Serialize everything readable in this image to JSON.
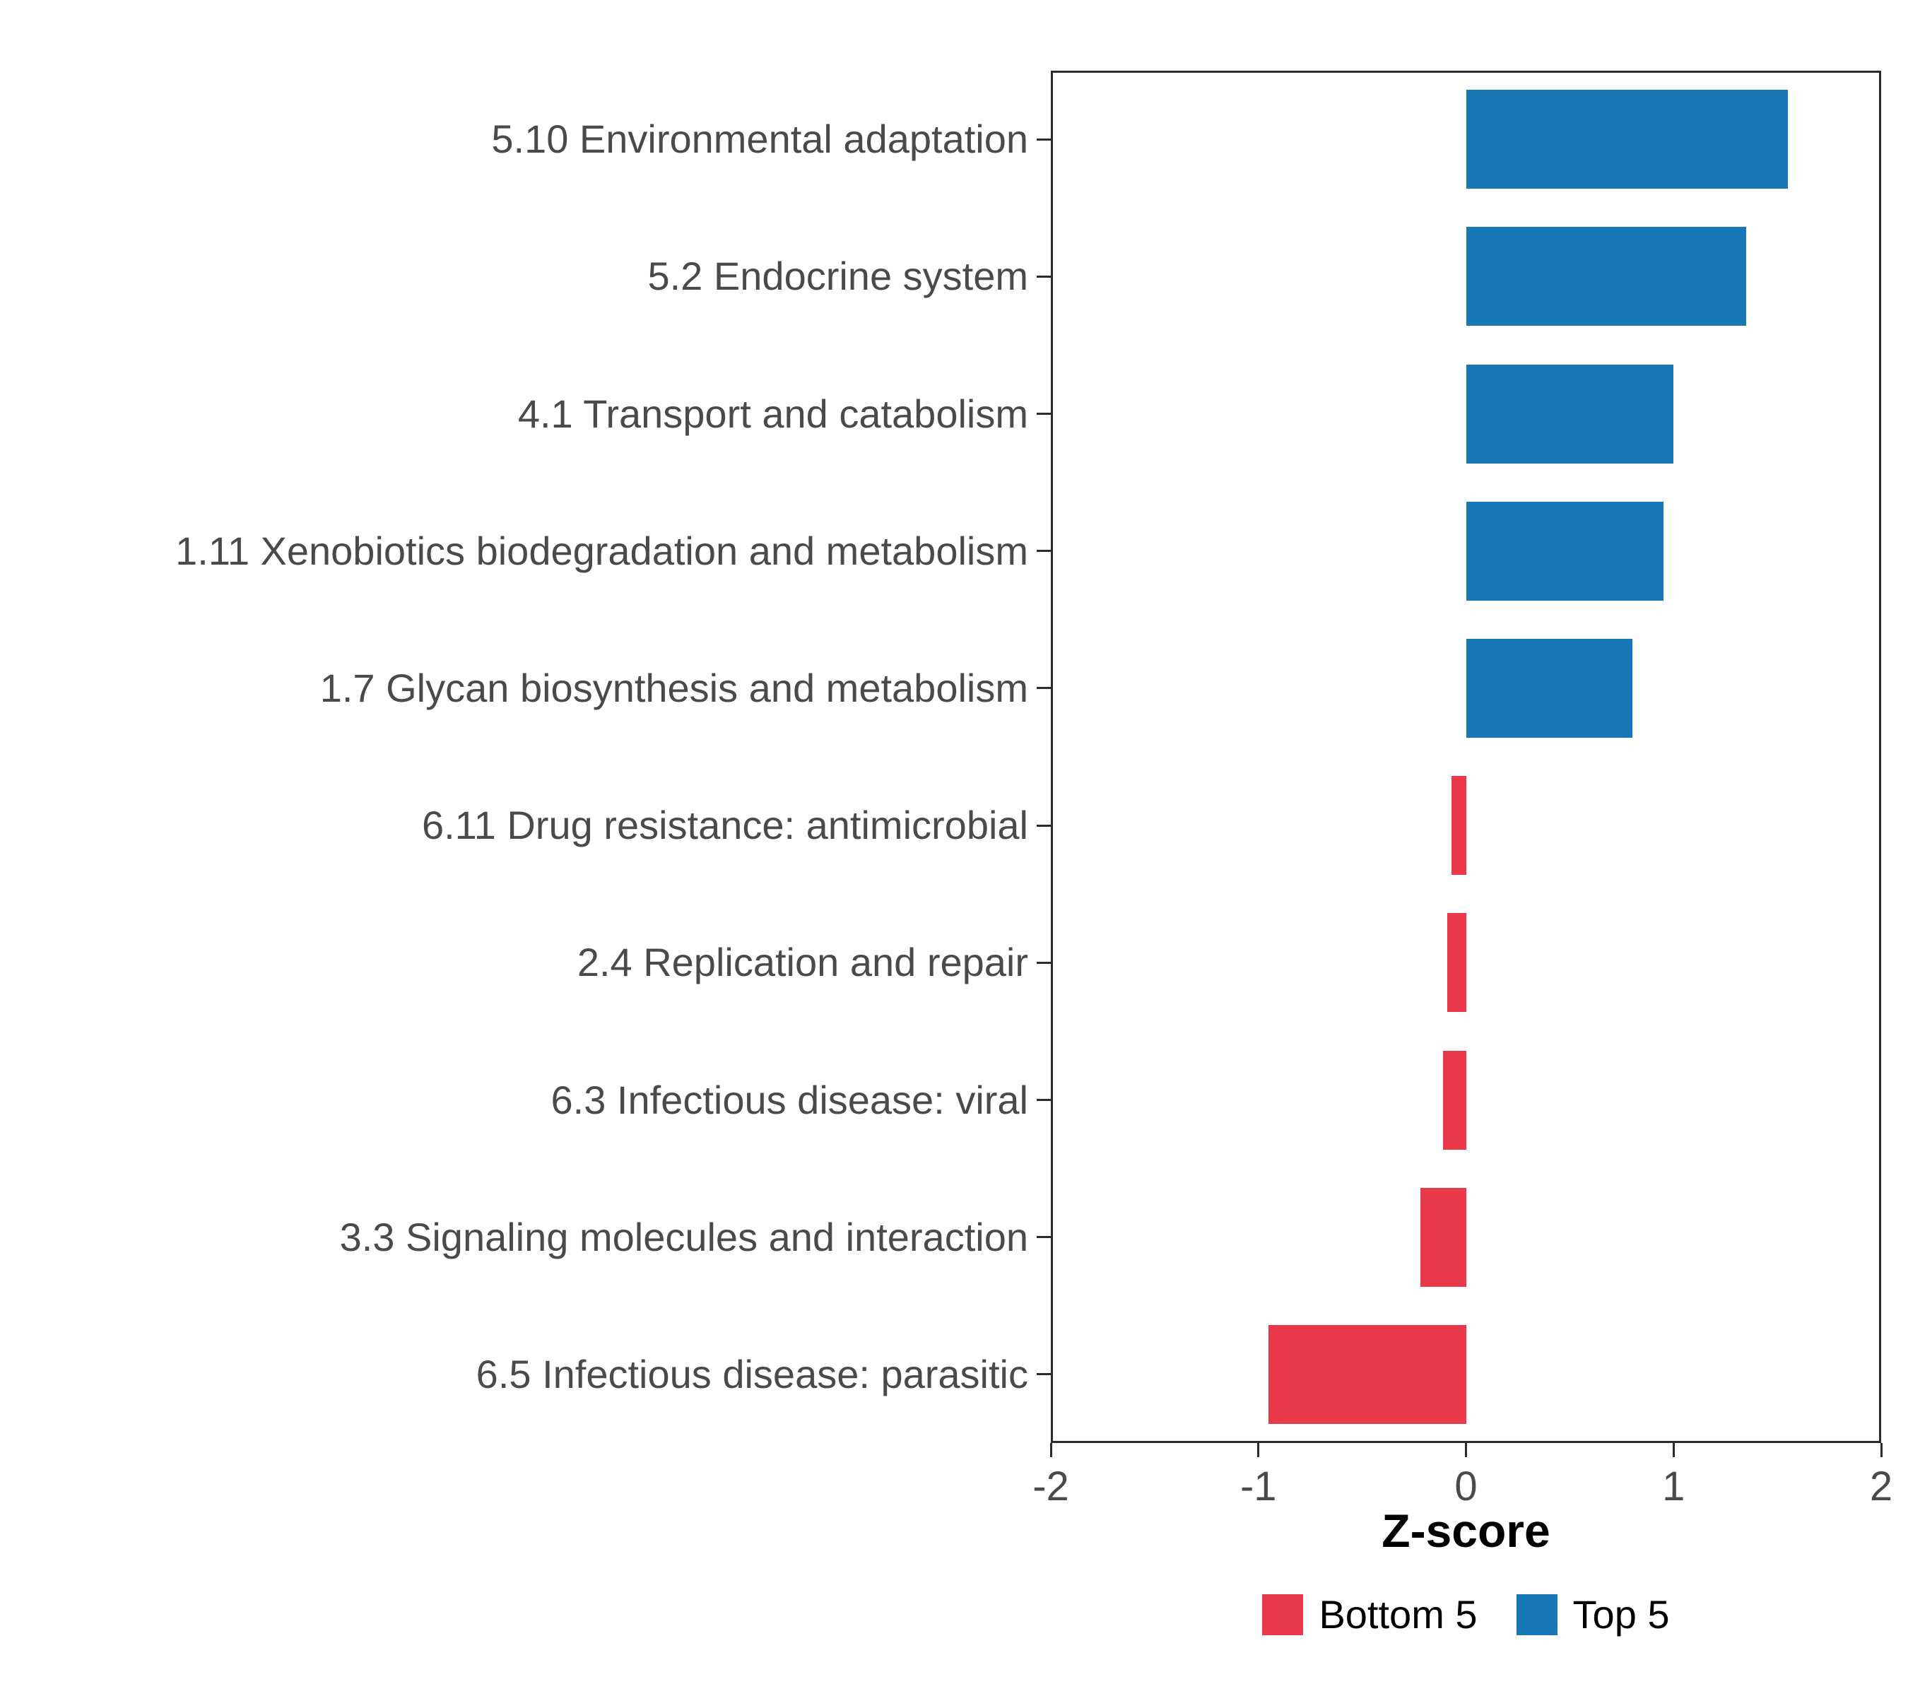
{
  "chart_data": {
    "type": "bar",
    "orientation": "horizontal",
    "title": "",
    "xlabel": "Z-score",
    "ylabel": "",
    "xlim": [
      -2,
      2
    ],
    "x_ticks": [
      "-2",
      "-1",
      "0",
      "1",
      "2"
    ],
    "x_tick_values": [
      -2,
      -1,
      0,
      1,
      2
    ],
    "categories": [
      "5.10 Environmental adaptation",
      "5.2 Endocrine system",
      "4.1 Transport and catabolism",
      "1.11 Xenobiotics biodegradation and metabolism",
      "1.7 Glycan biosynthesis and metabolism",
      "6.11 Drug resistance: antimicrobial",
      "2.4 Replication and repair",
      "6.3 Infectious disease: viral",
      "3.3 Signaling molecules and interaction",
      "6.5 Infectious disease: parasitic"
    ],
    "values": [
      1.55,
      1.35,
      1.0,
      0.95,
      0.8,
      -0.07,
      -0.09,
      -0.11,
      -0.22,
      -0.95
    ],
    "groups": [
      "Top 5",
      "Top 5",
      "Top 5",
      "Top 5",
      "Top 5",
      "Bottom 5",
      "Bottom 5",
      "Bottom 5",
      "Bottom 5",
      "Bottom 5"
    ],
    "colors": {
      "top": "#1778B5",
      "bottom": "#E8384A"
    },
    "legend": [
      {
        "label": "Bottom 5",
        "color": "#E8384A"
      },
      {
        "label": "Top 5",
        "color": "#1778B5"
      }
    ],
    "grid": false,
    "legend_position": "bottom-center"
  }
}
